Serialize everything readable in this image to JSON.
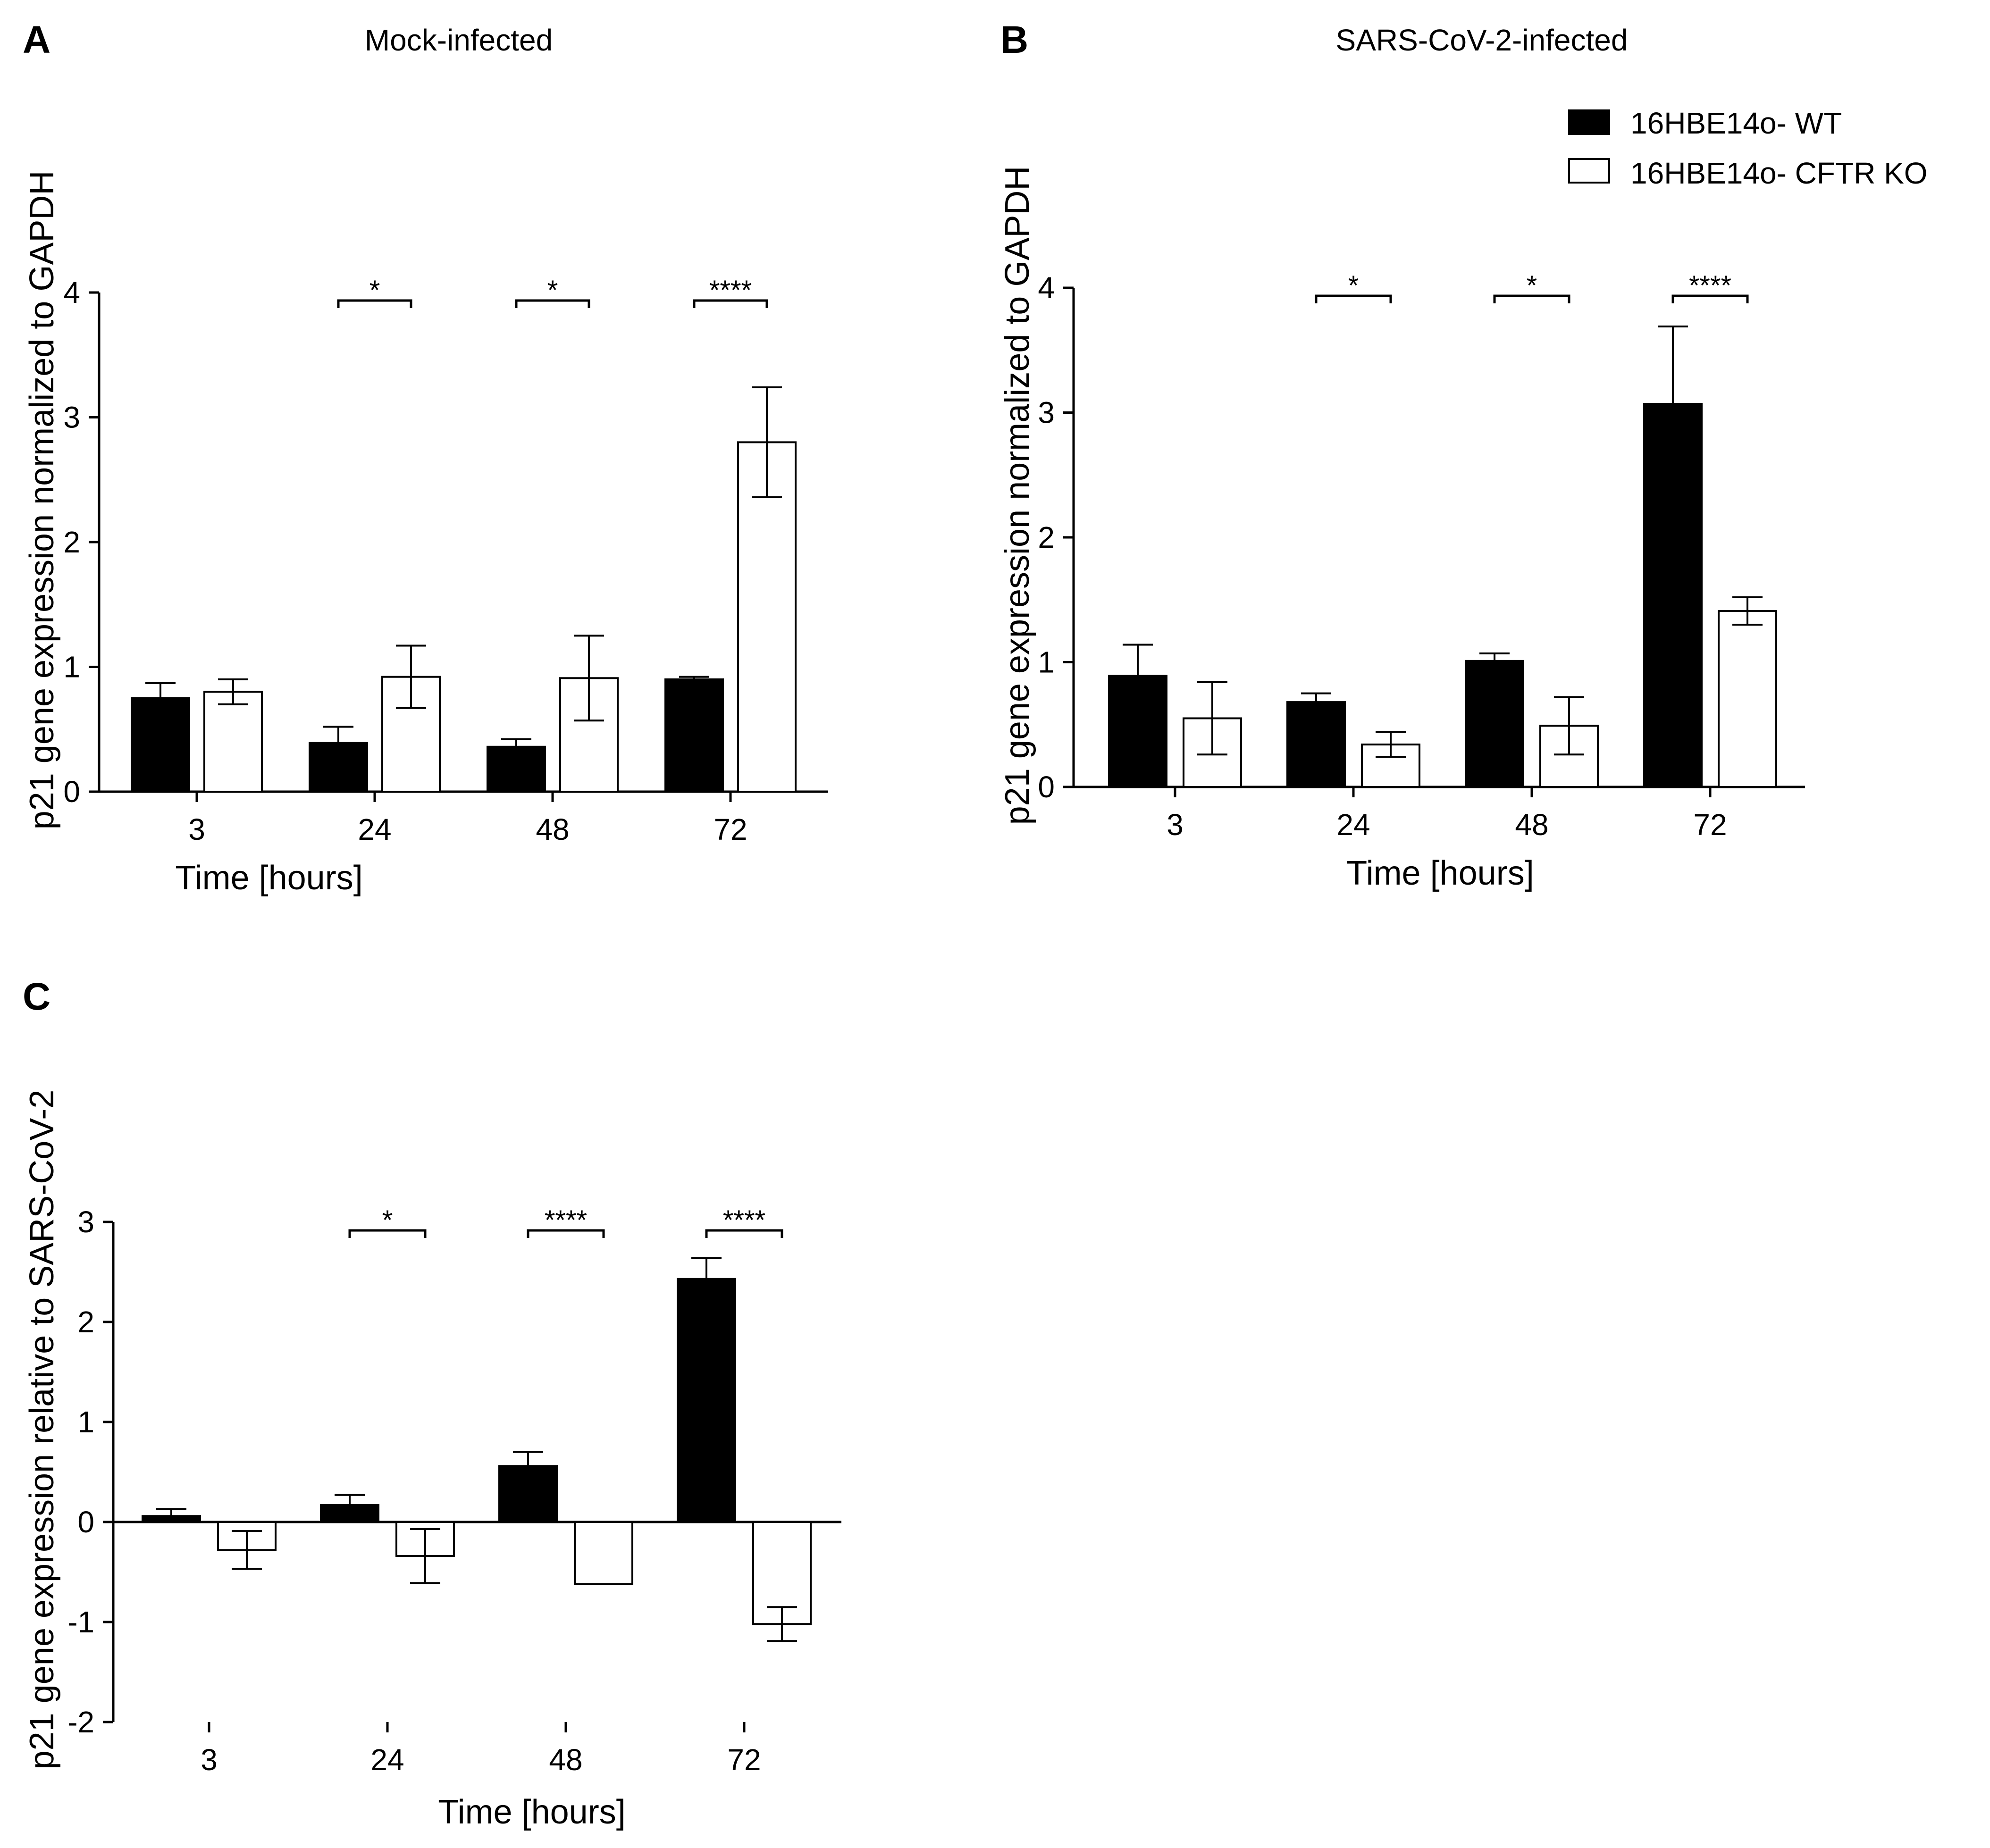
{
  "chart_data": [
    {
      "panel": "A",
      "type": "bar",
      "title": "Mock-infected",
      "xlabel": "Time [hours]",
      "ylabel": "p21 gene expression normalized to GAPDH",
      "categories": [
        "3",
        "24",
        "48",
        "72"
      ],
      "ylim": [
        0,
        4
      ],
      "yticks": [
        0,
        1,
        2,
        3,
        4
      ],
      "ytick_labels": [
        "0",
        "1",
        "2",
        "3",
        "4"
      ],
      "series": [
        {
          "name": "16HBE14o- WT",
          "fill": "#000000",
          "values": [
            0.75,
            0.39,
            0.36,
            0.9
          ],
          "err": [
            0.12,
            0.13,
            0.06,
            0.02
          ]
        },
        {
          "name": "16HBE14o- CFTR KO",
          "fill": "#ffffff",
          "values": [
            0.8,
            0.92,
            0.91,
            2.8
          ],
          "err": [
            0.1,
            0.25,
            0.34,
            0.44
          ]
        }
      ],
      "significance": [
        {
          "category": "24",
          "label": "*"
        },
        {
          "category": "48",
          "label": "*"
        },
        {
          "category": "72",
          "label": "****"
        }
      ]
    },
    {
      "panel": "B",
      "type": "bar",
      "title": "SARS-CoV-2-infected",
      "xlabel": "Time [hours]",
      "ylabel": "p21 gene expression normalized to GAPDH",
      "categories": [
        "3",
        "24",
        "48",
        "72"
      ],
      "ylim": [
        0,
        4
      ],
      "yticks": [
        0,
        1,
        2,
        3,
        4
      ],
      "ytick_labels": [
        "0",
        "1",
        "2",
        "3",
        "4"
      ],
      "series": [
        {
          "name": "16HBE14o- WT",
          "fill": "#000000",
          "values": [
            0.89,
            0.68,
            1.01,
            3.07
          ],
          "err": [
            0.25,
            0.07,
            0.06,
            0.62
          ]
        },
        {
          "name": "16HBE14o- CFTR KO",
          "fill": "#ffffff",
          "values": [
            0.55,
            0.34,
            0.49,
            1.41
          ],
          "err": [
            0.29,
            0.1,
            0.23,
            0.11
          ]
        }
      ],
      "significance": [
        {
          "category": "24",
          "label": "*"
        },
        {
          "category": "48",
          "label": "*"
        },
        {
          "category": "72",
          "label": "****"
        }
      ],
      "legend": {
        "placement": "top-right",
        "entries": [
          "16HBE14o- WT",
          "16HBE14o- CFTR KO"
        ]
      }
    },
    {
      "panel": "C",
      "type": "bar",
      "title": "",
      "xlabel": "Time [hours]",
      "ylabel": "p21 gene expression relative to SARS-CoV-2",
      "categories": [
        "3",
        "24",
        "48",
        "72"
      ],
      "ylim": [
        -2,
        3
      ],
      "yticks": [
        -2,
        -1,
        0,
        1,
        2,
        3
      ],
      "ytick_labels": [
        "-2",
        "-1",
        "0",
        "1",
        "2",
        "3"
      ],
      "series": [
        {
          "name": "16HBE14o- WT",
          "fill": "#000000",
          "values": [
            0.06,
            0.17,
            0.56,
            2.43
          ],
          "err": [
            0.07,
            0.1,
            0.14,
            0.21
          ]
        },
        {
          "name": "16HBE14o- CFTR KO",
          "fill": "#ffffff",
          "values": [
            -0.28,
            -0.34,
            -0.62,
            -1.02
          ],
          "err": [
            0.19,
            0.27,
            0.0,
            0.17
          ]
        }
      ],
      "significance": [
        {
          "category": "24",
          "label": "*"
        },
        {
          "category": "48",
          "label": "****"
        },
        {
          "category": "72",
          "label": "****"
        }
      ]
    }
  ]
}
